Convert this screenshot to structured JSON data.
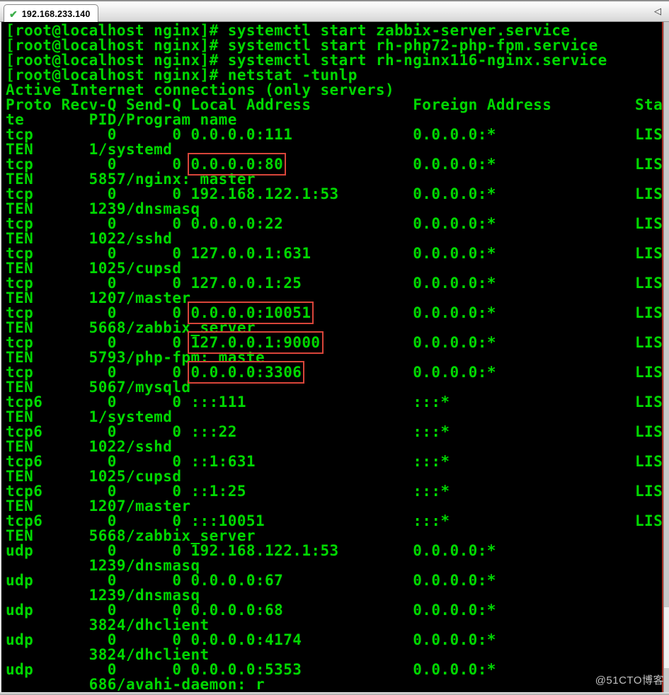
{
  "window": {
    "tab": {
      "label": "192.168.233.140",
      "status_icon": "✔"
    },
    "tab_scroll_left_icon": "◁"
  },
  "terminal": {
    "colors": {
      "background": "#000000",
      "text": "#00d800",
      "highlight_box": "#d8453a"
    },
    "lines": [
      [
        {
          "text": "[root@localhost nginx]# systemctl start zabbix-server.service",
          "boxed": false
        }
      ],
      [
        {
          "text": "[root@localhost nginx]# systemctl start rh-php72-php-fpm.service",
          "boxed": false
        }
      ],
      [
        {
          "text": "[root@localhost nginx]# systemctl start rh-nginx116-nginx.service",
          "boxed": false
        }
      ],
      [
        {
          "text": "[root@localhost nginx]# netstat -tunlp",
          "boxed": false
        }
      ],
      [
        {
          "text": "Active Internet connections (only servers)",
          "boxed": false
        }
      ],
      [
        {
          "text": "Proto Recv-Q Send-Q Local Address           Foreign Address         Sta",
          "boxed": false
        }
      ],
      [
        {
          "text": "te       PID/Program name",
          "boxed": false
        }
      ],
      [
        {
          "text": "tcp        0      0 0.0.0.0:111             0.0.0.0:*               LIS",
          "boxed": false
        }
      ],
      [
        {
          "text": "TEN      1/systemd",
          "boxed": false
        }
      ],
      [
        {
          "text": "tcp        0      0 ",
          "boxed": false
        },
        {
          "text": "0.0.0.0:80",
          "boxed": true
        },
        {
          "text": "              0.0.0.0:*               LIS",
          "boxed": false
        }
      ],
      [
        {
          "text": "TEN      5857/nginx: master",
          "boxed": false
        }
      ],
      [
        {
          "text": "tcp        0      0 192.168.122.1:53        0.0.0.0:*               LIS",
          "boxed": false
        }
      ],
      [
        {
          "text": "TEN      1239/dnsmasq",
          "boxed": false
        }
      ],
      [
        {
          "text": "tcp        0      0 0.0.0.0:22              0.0.0.0:*               LIS",
          "boxed": false
        }
      ],
      [
        {
          "text": "TEN      1022/sshd",
          "boxed": false
        }
      ],
      [
        {
          "text": "tcp        0      0 127.0.0.1:631           0.0.0.0:*               LIS",
          "boxed": false
        }
      ],
      [
        {
          "text": "TEN      1025/cupsd",
          "boxed": false
        }
      ],
      [
        {
          "text": "tcp        0      0 127.0.0.1:25            0.0.0.0:*               LIS",
          "boxed": false
        }
      ],
      [
        {
          "text": "TEN      1207/master",
          "boxed": false
        }
      ],
      [
        {
          "text": "tcp        0      0 ",
          "boxed": false
        },
        {
          "text": "0.0.0.0:10051",
          "boxed": true
        },
        {
          "text": "           0.0.0.0:*               LIS",
          "boxed": false
        }
      ],
      [
        {
          "text": "TEN      5668/zabbix_server",
          "boxed": false
        }
      ],
      [
        {
          "text": "tcp        0      0 ",
          "boxed": false
        },
        {
          "text": "127.0.0.1:9000",
          "boxed": true
        },
        {
          "text": "          0.0.0.0:*               LIS",
          "boxed": false
        }
      ],
      [
        {
          "text": "TEN      5793/php-fpm: maste",
          "boxed": false
        }
      ],
      [
        {
          "text": "tcp        0      0 ",
          "boxed": false
        },
        {
          "text": "0.0.0.0:3306",
          "boxed": true
        },
        {
          "text": "            0.0.0.0:*               LIS",
          "boxed": false
        }
      ],
      [
        {
          "text": "TEN      5067/mysqld",
          "boxed": false
        }
      ],
      [
        {
          "text": "tcp6       0      0 :::111                  :::*                    LIS",
          "boxed": false
        }
      ],
      [
        {
          "text": "TEN      1/systemd",
          "boxed": false
        }
      ],
      [
        {
          "text": "tcp6       0      0 :::22                   :::*                    LIS",
          "boxed": false
        }
      ],
      [
        {
          "text": "TEN      1022/sshd",
          "boxed": false
        }
      ],
      [
        {
          "text": "tcp6       0      0 ::1:631                 :::*                    LIS",
          "boxed": false
        }
      ],
      [
        {
          "text": "TEN      1025/cupsd",
          "boxed": false
        }
      ],
      [
        {
          "text": "tcp6       0      0 ::1:25                  :::*                    LIS",
          "boxed": false
        }
      ],
      [
        {
          "text": "TEN      1207/master",
          "boxed": false
        }
      ],
      [
        {
          "text": "tcp6       0      0 :::10051                :::*                    LIS",
          "boxed": false
        }
      ],
      [
        {
          "text": "TEN      5668/zabbix_server",
          "boxed": false
        }
      ],
      [
        {
          "text": "udp        0      0 192.168.122.1:53        0.0.0.0:*",
          "boxed": false
        }
      ],
      [
        {
          "text": "         1239/dnsmasq",
          "boxed": false
        }
      ],
      [
        {
          "text": "udp        0      0 0.0.0.0:67              0.0.0.0:*",
          "boxed": false
        }
      ],
      [
        {
          "text": "         1239/dnsmasq",
          "boxed": false
        }
      ],
      [
        {
          "text": "udp        0      0 0.0.0.0:68              0.0.0.0:*",
          "boxed": false
        }
      ],
      [
        {
          "text": "         3824/dhclient",
          "boxed": false
        }
      ],
      [
        {
          "text": "udp        0      0 0.0.0.0:4174            0.0.0.0:*",
          "boxed": false
        }
      ],
      [
        {
          "text": "         3824/dhclient",
          "boxed": false
        }
      ],
      [
        {
          "text": "udp        0      0 0.0.0.0:5353            0.0.0.0:*",
          "boxed": false
        }
      ],
      [
        {
          "text": "         686/avahi-daemon: r",
          "boxed": false
        }
      ]
    ]
  },
  "watermark": {
    "text": "@51CTO博客"
  }
}
